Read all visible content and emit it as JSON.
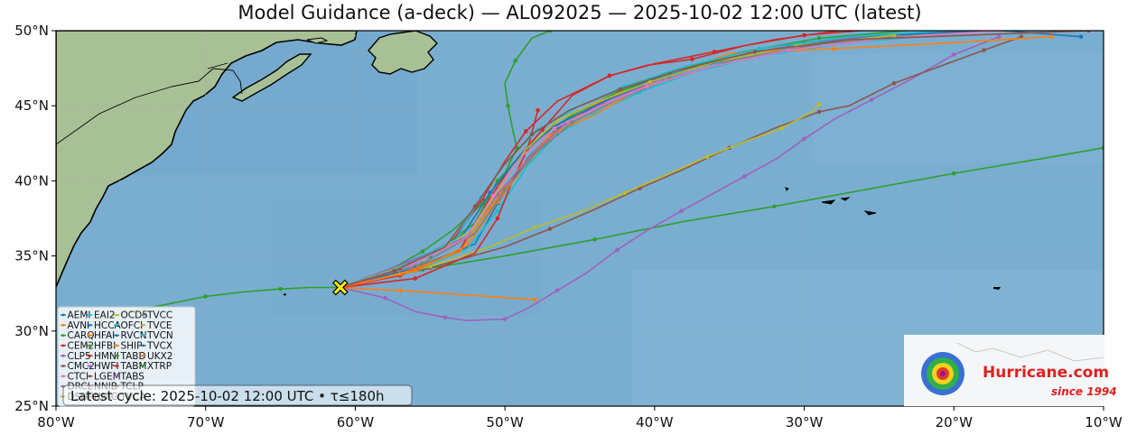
{
  "title": "Model Guidance (a-deck) — AL092025 — 2025-10-02 12:00 UTC (latest)",
  "footer": "Latest cycle: 2025-10-02 12:00 UTC • τ≤180h",
  "logo": {
    "name": "Hurricane.com",
    "tagline": "since 1994"
  },
  "map": {
    "lon_range": [
      -80,
      -10
    ],
    "lat_range": [
      25,
      50
    ],
    "x_ticks": [
      {
        "lon": -80,
        "label": "80°W"
      },
      {
        "lon": -70,
        "label": "70°W"
      },
      {
        "lon": -60,
        "label": "60°W"
      },
      {
        "lon": -50,
        "label": "50°W"
      },
      {
        "lon": -40,
        "label": "40°W"
      },
      {
        "lon": -30,
        "label": "30°W"
      },
      {
        "lon": -20,
        "label": "20°W"
      },
      {
        "lon": -10,
        "label": "10°W"
      }
    ],
    "y_ticks": [
      {
        "lat": 50,
        "label": "50°N"
      },
      {
        "lat": 45,
        "label": "45°N"
      },
      {
        "lat": 40,
        "label": "40°N"
      },
      {
        "lat": 35,
        "label": "35°N"
      },
      {
        "lat": 30,
        "label": "30°N"
      },
      {
        "lat": 25,
        "label": "25°N"
      }
    ],
    "grid": true,
    "ocean_color": "#7aaed0",
    "land_color": "#a9c29a"
  },
  "storm_position": {
    "lon": -61.0,
    "lat": 32.9,
    "marker": "x-marker-icon",
    "color": "#ffee00"
  },
  "legend": {
    "placement": "bottom-left",
    "columns": 5,
    "entries": [
      {
        "name": "AEMI",
        "color": "#1f77b4"
      },
      {
        "name": "AVNI",
        "color": "#ff7f0e"
      },
      {
        "name": "CARQ",
        "color": "#2ca02c"
      },
      {
        "name": "CEM2",
        "color": "#d62728"
      },
      {
        "name": "CLP5",
        "color": "#9467bd"
      },
      {
        "name": "CMC2",
        "color": "#8c564b"
      },
      {
        "name": "CTCI",
        "color": "#e377c2"
      },
      {
        "name": "DRCL",
        "color": "#7f7f7f"
      },
      {
        "name": "DSHP",
        "color": "#bcbd22"
      },
      {
        "name": "EAI2",
        "color": "#17becf"
      },
      {
        "name": "HCCA",
        "color": "#1f77b4"
      },
      {
        "name": "HFAI",
        "color": "#ff7f0e"
      },
      {
        "name": "HFBI",
        "color": "#2ca02c"
      },
      {
        "name": "HMNI",
        "color": "#d62728"
      },
      {
        "name": "HWFI",
        "color": "#9467bd"
      },
      {
        "name": "LGEM",
        "color": "#8c564b"
      },
      {
        "name": "NNIB",
        "color": "#e377c2"
      },
      {
        "name": "NNIC",
        "color": "#7f7f7f"
      },
      {
        "name": "OCD5",
        "color": "#bcbd22"
      },
      {
        "name": "OFCI",
        "color": "#17becf"
      },
      {
        "name": "RVCN",
        "color": "#1f77b4"
      },
      {
        "name": "SHIP",
        "color": "#ff7f0e"
      },
      {
        "name": "TABD",
        "color": "#2ca02c"
      },
      {
        "name": "TABM",
        "color": "#d62728"
      },
      {
        "name": "TABS",
        "color": "#9467bd"
      },
      {
        "name": "TCLP",
        "color": "#8c564b"
      },
      {
        "name": "TVCA",
        "color": "#e377c2"
      },
      {
        "name": "TVCC",
        "color": "#7f7f7f"
      },
      {
        "name": "TVCE",
        "color": "#bcbd22"
      },
      {
        "name": "TVCN",
        "color": "#17becf"
      },
      {
        "name": "TVCX",
        "color": "#1f77b4"
      },
      {
        "name": "UKX2",
        "color": "#ff7f0e"
      },
      {
        "name": "XTRP",
        "color": "#2ca02c"
      }
    ]
  },
  "tracks": [
    {
      "color": "#2ca02c",
      "pts": [
        [
          -78,
          30.5
        ],
        [
          -75,
          31.3
        ],
        [
          -72.5,
          31.8
        ],
        [
          -70,
          32.3
        ],
        [
          -67.5,
          32.6
        ],
        [
          -65,
          32.8
        ],
        [
          -63,
          32.9
        ],
        [
          -61,
          32.9
        ],
        [
          -58,
          33.9
        ],
        [
          -55.5,
          35.3
        ],
        [
          -53.5,
          36.7
        ],
        [
          -51.5,
          38.5
        ],
        [
          -50,
          40.5
        ],
        [
          -49.2,
          42.2
        ],
        [
          -49.5,
          43.5
        ],
        [
          -49.8,
          45
        ],
        [
          -50,
          46.5
        ],
        [
          -49.3,
          48
        ],
        [
          -48.2,
          49.5
        ],
        [
          -47,
          50
        ]
      ]
    },
    {
      "color": "#2ca02c",
      "pts": [
        [
          -61,
          32.9
        ],
        [
          -55.5,
          34.1
        ],
        [
          -50,
          35
        ],
        [
          -44,
          36.1
        ],
        [
          -38,
          37.3
        ],
        [
          -32,
          38.3
        ],
        [
          -26,
          39.4
        ],
        [
          -20,
          40.5
        ],
        [
          -14,
          41.5
        ],
        [
          -10,
          42.2
        ]
      ]
    },
    {
      "color": "#e377c2",
      "pts": [
        [
          -61,
          32.9
        ],
        [
          -58,
          32.2
        ],
        [
          -56,
          31.3
        ],
        [
          -54,
          30.9
        ],
        [
          -52.5,
          30.7
        ],
        [
          -50,
          30.8
        ],
        [
          -48.5,
          31.5
        ],
        [
          -46.5,
          32.7
        ],
        [
          -44.5,
          33.9
        ],
        [
          -42.5,
          35.4
        ],
        [
          -40.5,
          36.7
        ],
        [
          -38.2,
          38
        ],
        [
          -36,
          39.2
        ],
        [
          -34,
          40.3
        ],
        [
          -31.8,
          41.5
        ],
        [
          -30,
          42.8
        ],
        [
          -28,
          44.1
        ],
        [
          -25.5,
          45.4
        ],
        [
          -23,
          46.7
        ],
        [
          -20,
          48.4
        ],
        [
          -17,
          49.6
        ]
      ]
    },
    {
      "color": "#9467bd",
      "pts": [
        [
          -61,
          32.9
        ],
        [
          -58,
          32.2
        ],
        [
          -56,
          31.3
        ],
        [
          -54,
          30.9
        ],
        [
          -52.5,
          30.7
        ],
        [
          -50,
          30.8
        ],
        [
          -48.5,
          31.5
        ],
        [
          -46.5,
          32.7
        ],
        [
          -44.5,
          33.9
        ],
        [
          -42.5,
          35.4
        ],
        [
          -40.5,
          36.7
        ],
        [
          -38.2,
          38
        ],
        [
          -36,
          39.2
        ],
        [
          -34,
          40.3
        ],
        [
          -31.8,
          41.5
        ],
        [
          -30,
          42.8
        ],
        [
          -28,
          44.1
        ],
        [
          -25.5,
          45.4
        ],
        [
          -23,
          46.7
        ],
        [
          -20,
          48.4
        ],
        [
          -17,
          49.6
        ]
      ]
    },
    {
      "color": "#8c564b",
      "pts": [
        [
          -61,
          32.9
        ],
        [
          -55,
          34.2
        ],
        [
          -50,
          35.6
        ],
        [
          -47,
          36.8
        ],
        [
          -44,
          38.1
        ],
        [
          -41,
          39.5
        ],
        [
          -38,
          40.8
        ],
        [
          -35,
          42.2
        ],
        [
          -32,
          43.5
        ],
        [
          -29,
          44.6
        ],
        [
          -27,
          45
        ],
        [
          -24,
          46.5
        ],
        [
          -21,
          47.6
        ],
        [
          -18,
          48.7
        ],
        [
          -15.5,
          49.6
        ]
      ]
    },
    {
      "color": "#bcbd22",
      "pts": [
        [
          -61,
          32.9
        ],
        [
          -55,
          34.3
        ],
        [
          -51,
          35.6
        ],
        [
          -48,
          36.9
        ],
        [
          -45,
          37.9
        ],
        [
          -42,
          39.2
        ],
        [
          -39,
          40.5
        ],
        [
          -36.5,
          41.6
        ],
        [
          -34,
          42.6
        ],
        [
          -31.5,
          43.5
        ],
        [
          -29.5,
          44.6
        ],
        [
          -29,
          45.1
        ]
      ]
    },
    {
      "color": "#ff7f0e",
      "pts": [
        [
          -61,
          32.9
        ],
        [
          -57,
          32.7
        ],
        [
          -52.5,
          32.4
        ],
        [
          -48,
          32.1
        ]
      ]
    },
    {
      "color": "#1f77b4",
      "pts": [
        [
          -61,
          32.9
        ],
        [
          -56,
          34.2
        ],
        [
          -52,
          35.8
        ],
        [
          -50.5,
          38.5
        ],
        [
          -48.5,
          41.5
        ],
        [
          -46.5,
          43.5
        ],
        [
          -44,
          45
        ],
        [
          -41,
          46.3
        ],
        [
          -37,
          47.6
        ],
        [
          -32,
          48.8
        ],
        [
          -26,
          49.6
        ],
        [
          -18,
          50.1
        ],
        [
          -11.5,
          49.6
        ]
      ]
    },
    {
      "color": "#17becf",
      "pts": [
        [
          -61,
          32.9
        ],
        [
          -56,
          34.0
        ],
        [
          -52.5,
          35.5
        ],
        [
          -50.5,
          38
        ],
        [
          -48.5,
          41
        ],
        [
          -46.5,
          43.1
        ],
        [
          -44,
          44.5
        ],
        [
          -41,
          45.9
        ],
        [
          -37.5,
          47.2
        ],
        [
          -33,
          48.3
        ],
        [
          -27,
          49.2
        ],
        [
          -20,
          49.8
        ]
      ]
    },
    {
      "color": "#d62728",
      "pts": [
        [
          -61,
          32.9
        ],
        [
          -56,
          33.5
        ],
        [
          -52,
          35.2
        ],
        [
          -50.5,
          37.5
        ],
        [
          -49.5,
          40
        ],
        [
          -48.5,
          42.1
        ],
        [
          -47.8,
          44.7
        ]
      ]
    },
    {
      "color": "#d62728",
      "pts": [
        [
          -61,
          32.9
        ],
        [
          -57,
          33.7
        ],
        [
          -53,
          35.4
        ],
        [
          -51.3,
          38.4
        ],
        [
          -49.5,
          41.1
        ],
        [
          -47.5,
          43.4
        ],
        [
          -45.5,
          45.7
        ],
        [
          -43,
          47
        ],
        [
          -40.5,
          47.7
        ],
        [
          -37.5,
          48.1
        ],
        [
          -34,
          49
        ],
        [
          -30,
          49.7
        ],
        [
          -25,
          50.1
        ]
      ]
    },
    {
      "color": "#ff7f0e",
      "pts": [
        [
          -61,
          32.9
        ],
        [
          -56,
          34
        ],
        [
          -52.5,
          35.7
        ],
        [
          -50.5,
          38.6
        ],
        [
          -48.5,
          41.2
        ],
        [
          -46.5,
          43.3
        ],
        [
          -44,
          44.4
        ],
        [
          -40.5,
          46.4
        ],
        [
          -35,
          48.5
        ],
        [
          -28,
          48.8
        ],
        [
          -20,
          49.2
        ],
        [
          -13.5,
          49.6
        ]
      ]
    },
    {
      "color": "#ff7f0e",
      "pts": [
        [
          -61,
          32.9
        ],
        [
          -57,
          33.8
        ],
        [
          -53,
          35.3
        ],
        [
          -51,
          38.2
        ],
        [
          -49,
          40.9
        ],
        [
          -47,
          43
        ],
        [
          -44.5,
          44.8
        ],
        [
          -41,
          46.6
        ],
        [
          -37,
          47.8
        ],
        [
          -32,
          48.8
        ],
        [
          -25,
          49.6
        ],
        [
          -18,
          50.1
        ]
      ]
    },
    {
      "color": "#9467bd",
      "pts": [
        [
          -61,
          32.9
        ],
        [
          -56.5,
          34.6
        ],
        [
          -52.5,
          36.3
        ],
        [
          -50.5,
          39.1
        ],
        [
          -48.3,
          41.6
        ],
        [
          -46,
          43.8
        ],
        [
          -43,
          45.4
        ],
        [
          -39.5,
          46.8
        ],
        [
          -35,
          48.2
        ],
        [
          -30,
          49.2
        ],
        [
          -24,
          49.8
        ],
        [
          -15,
          50.1
        ]
      ]
    },
    {
      "color": "#7f7f7f",
      "pts": [
        [
          -61,
          32.9
        ],
        [
          -55.5,
          34.5
        ],
        [
          -52,
          36.5
        ],
        [
          -50,
          39.4
        ],
        [
          -48,
          41.8
        ],
        [
          -45.5,
          43.9
        ],
        [
          -42.5,
          45.4
        ],
        [
          -39,
          46.8
        ],
        [
          -34.5,
          48.1
        ],
        [
          -29,
          49.1
        ],
        [
          -22,
          49.8
        ],
        [
          -14,
          50.1
        ]
      ]
    },
    {
      "color": "#2ca02c",
      "pts": [
        [
          -61,
          32.9
        ],
        [
          -55,
          35
        ],
        [
          -52,
          37.2
        ],
        [
          -50.5,
          40
        ],
        [
          -48.2,
          42.5
        ],
        [
          -45.5,
          44.4
        ],
        [
          -42.5,
          45.9
        ],
        [
          -39,
          47.2
        ],
        [
          -34,
          48.6
        ],
        [
          -29,
          49.5
        ],
        [
          -22,
          50.1
        ]
      ]
    },
    {
      "color": "#d62728",
      "pts": [
        [
          -61,
          32.9
        ],
        [
          -57,
          34.2
        ],
        [
          -53.5,
          36
        ],
        [
          -51.5,
          38.8
        ],
        [
          -50,
          41.3
        ],
        [
          -48.6,
          43.3
        ],
        [
          -46.5,
          45.3
        ],
        [
          -43,
          47
        ],
        [
          -40,
          47.8
        ],
        [
          -36,
          48.6
        ],
        [
          -32,
          49.4
        ],
        [
          -27,
          50.1
        ]
      ]
    },
    {
      "color": "#1f77b4",
      "pts": [
        [
          -61,
          32.9
        ],
        [
          -56,
          34.6
        ],
        [
          -52.8,
          36.4
        ],
        [
          -51,
          39.2
        ],
        [
          -49,
          41.7
        ],
        [
          -46.8,
          43.6
        ],
        [
          -44,
          45
        ],
        [
          -40.8,
          46.5
        ],
        [
          -36.5,
          47.8
        ],
        [
          -31,
          48.9
        ],
        [
          -24.5,
          49.7
        ],
        [
          -16,
          50.1
        ]
      ]
    },
    {
      "color": "#bcbd22",
      "pts": [
        [
          -61,
          32.9
        ],
        [
          -55.5,
          34.8
        ],
        [
          -52.2,
          36.7
        ],
        [
          -50.3,
          39.6
        ],
        [
          -48.6,
          42.1
        ],
        [
          -46.5,
          44
        ],
        [
          -43.7,
          45.3
        ],
        [
          -40.3,
          46.6
        ],
        [
          -36,
          47.9
        ],
        [
          -30.5,
          49
        ],
        [
          -24,
          49.7
        ]
      ]
    },
    {
      "color": "#17becf",
      "pts": [
        [
          -61,
          32.9
        ],
        [
          -56.8,
          34.3
        ],
        [
          -53.3,
          36.1
        ],
        [
          -51.6,
          38.9
        ],
        [
          -49.8,
          41.4
        ],
        [
          -47.8,
          43.4
        ],
        [
          -45.2,
          44.9
        ],
        [
          -42,
          46.3
        ],
        [
          -38,
          47.6
        ],
        [
          -33,
          48.8
        ],
        [
          -27,
          49.6
        ],
        [
          -19,
          50.1
        ]
      ]
    },
    {
      "color": "#e377c2",
      "pts": [
        [
          -61,
          32.9
        ],
        [
          -56.3,
          34.4
        ],
        [
          -52.6,
          36.2
        ],
        [
          -50.8,
          39
        ],
        [
          -48.9,
          41.6
        ],
        [
          -46.7,
          43.5
        ],
        [
          -43.8,
          44.9
        ],
        [
          -40.5,
          46.3
        ],
        [
          -36.2,
          47.6
        ],
        [
          -31,
          48.7
        ],
        [
          -24.5,
          49.5
        ],
        [
          -17,
          50
        ]
      ]
    },
    {
      "color": "#8c564b",
      "pts": [
        [
          -61,
          32.9
        ],
        [
          -57.4,
          34.0
        ],
        [
          -54,
          35.6
        ],
        [
          -52,
          38.3
        ],
        [
          -50.2,
          40.9
        ],
        [
          -48.2,
          43.1
        ],
        [
          -45.7,
          44.7
        ],
        [
          -42.3,
          46.1
        ],
        [
          -38.3,
          47.4
        ],
        [
          -33.3,
          48.6
        ],
        [
          -27,
          49.4
        ],
        [
          -11,
          50
        ]
      ]
    }
  ]
}
